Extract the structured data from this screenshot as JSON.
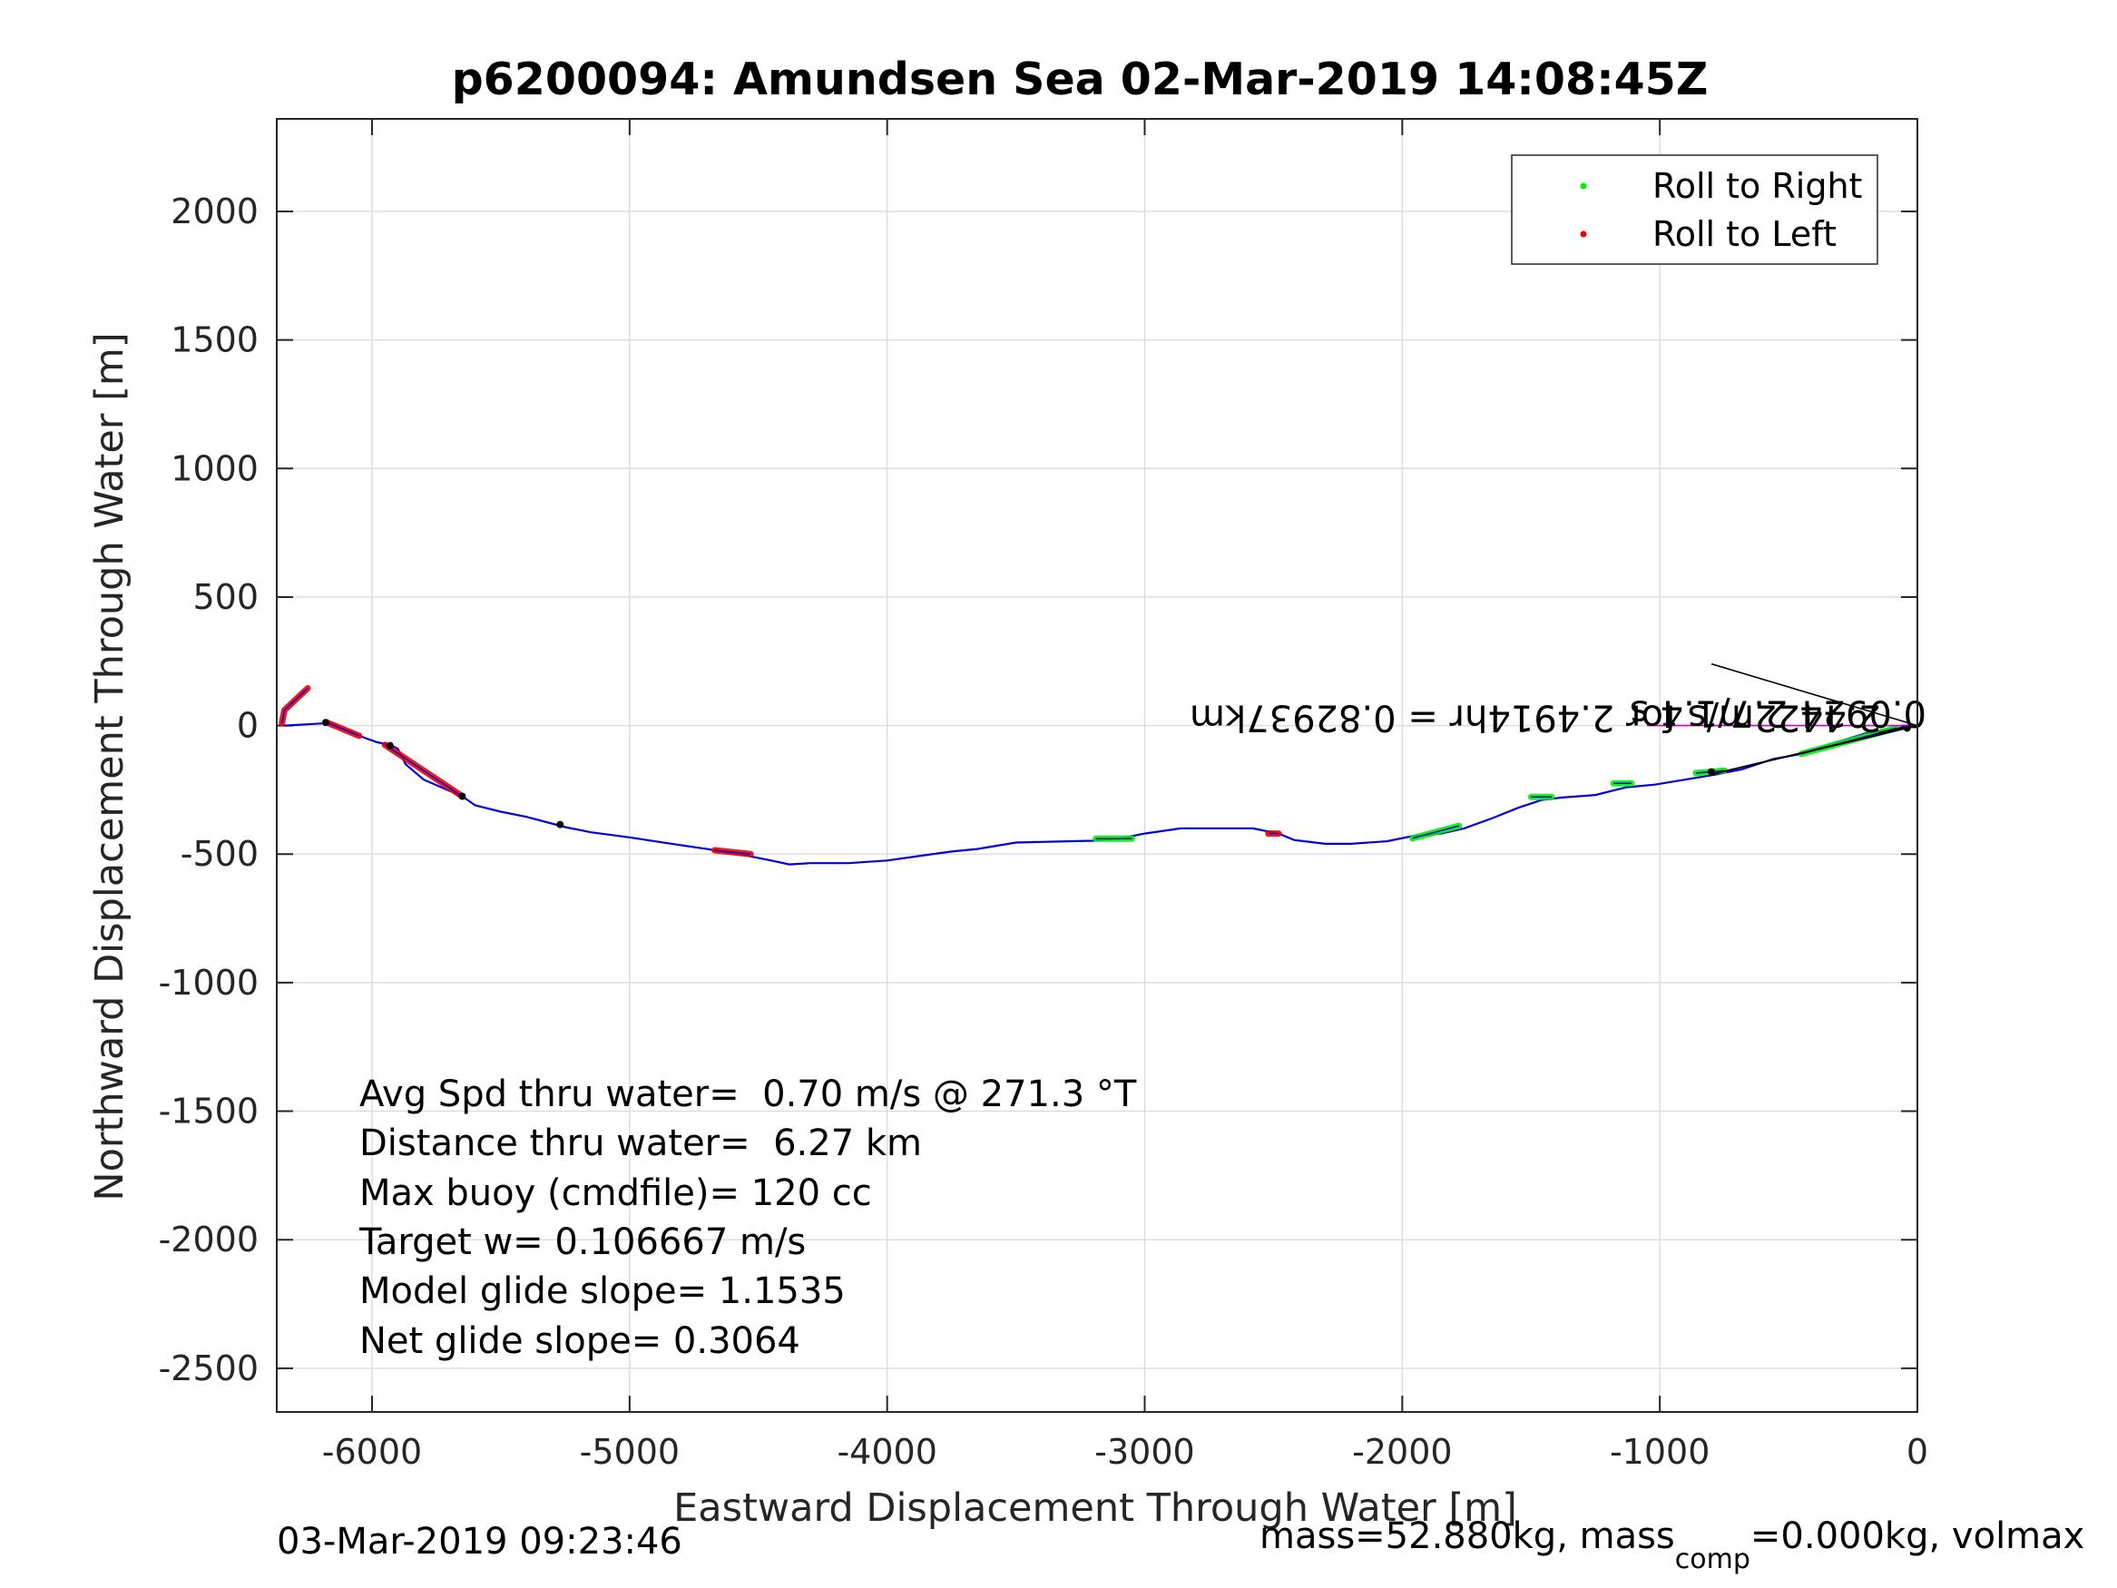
{
  "chart_data": {
    "type": "line",
    "title": "p6200094: Amundsen Sea 02-Mar-2019 14:08:45Z",
    "xlabel": "Eastward Displacement Through Water [m]",
    "ylabel": "Northward Displacement Through Water [m]",
    "xlim": [
      -6370,
      0
    ],
    "ylim": [
      -2670,
      2360
    ],
    "xticks": [
      -6000,
      -5000,
      -4000,
      -3000,
      -2000,
      -1000,
      0
    ],
    "yticks": [
      2000,
      1500,
      1000,
      500,
      0,
      -500,
      -1000,
      -1500,
      -2000,
      -2500
    ],
    "grid": true,
    "legend": {
      "placement": "top-right",
      "entries": [
        {
          "label": "Roll to Right",
          "color": "#00ee00"
        },
        {
          "label": "Roll to Left",
          "color": "#ee0000"
        }
      ]
    },
    "series": [
      {
        "color": "#0000dd",
        "x": [
          0,
          -80,
          -200,
          -330,
          -450,
          -560,
          -680,
          -780,
          -900,
          -1020,
          -1130,
          -1250,
          -1380,
          -1460,
          -1550,
          -1650,
          -1760,
          -1850,
          -1960,
          -2060,
          -2200,
          -2300,
          -2420,
          -2480,
          -2580,
          -2700,
          -2860,
          -3000,
          -3100,
          -3200,
          -3300,
          -3500,
          -3650,
          -3750,
          -3880,
          -4000,
          -4150,
          -4300,
          -4380,
          -4450,
          -4550,
          -4700,
          -4850,
          -5000,
          -5150,
          -5250,
          -5400,
          -5500,
          -5600,
          -5650,
          -5720,
          -5800,
          -5870,
          -5900,
          -5930,
          -5980,
          -6050,
          -6130,
          -6170,
          -6250,
          -6300,
          -6340
        ],
        "y": [
          0,
          -10,
          -30,
          -70,
          -110,
          -130,
          -170,
          -190,
          -210,
          -230,
          -240,
          -270,
          -280,
          -290,
          -320,
          -360,
          -400,
          -420,
          -430,
          -450,
          -460,
          -460,
          -445,
          -420,
          -400,
          -400,
          -400,
          -420,
          -440,
          -448,
          -450,
          -455,
          -480,
          -490,
          -508,
          -525,
          -535,
          -535,
          -540,
          -525,
          -505,
          -480,
          -458,
          -435,
          -415,
          -395,
          -355,
          -335,
          -310,
          -275,
          -245,
          -210,
          -150,
          -90,
          -75,
          -65,
          -40,
          -5,
          10,
          5,
          2,
          0
        ]
      }
    ],
    "roll_right_segments": [
      {
        "x": [
          -80,
          -450
        ],
        "y": [
          -10,
          -110
        ]
      },
      {
        "x": [
          -750,
          -860
        ],
        "y": [
          -175,
          -185
        ]
      },
      {
        "x": [
          -1110,
          -1180
        ],
        "y": [
          -225,
          -225
        ]
      },
      {
        "x": [
          -1420,
          -1500
        ],
        "y": [
          -278,
          -278
        ]
      },
      {
        "x": [
          -1780,
          -1960
        ],
        "y": [
          -390,
          -438
        ]
      },
      {
        "x": [
          -3050,
          -3190
        ],
        "y": [
          -440,
          -440
        ]
      }
    ],
    "roll_left_segments": [
      {
        "x": [
          -6250,
          -6340,
          -6350
        ],
        "y": [
          145,
          60,
          10
        ]
      },
      {
        "x": [
          -6050,
          -6170
        ],
        "y": [
          -40,
          10
        ]
      },
      {
        "x": [
          -5650,
          -5950
        ],
        "y": [
          -275,
          -75
        ]
      },
      {
        "x": [
          -4530,
          -4670
        ],
        "y": [
          -500,
          -485
        ]
      },
      {
        "x": [
          -2480,
          -2520
        ],
        "y": [
          -420,
          -420
        ]
      }
    ],
    "markers": [
      {
        "x": -6180,
        "y": 12
      },
      {
        "x": -5930,
        "y": -78
      },
      {
        "x": -5650,
        "y": -275
      },
      {
        "x": -5270,
        "y": -385
      },
      {
        "x": -800,
        "y": -180
      },
      {
        "x": -40,
        "y": -10
      }
    ],
    "annotations": {
      "rotated_label_1": "2.4422m/s for 2.4914hr = 0.82937km",
      "rotated_label_2": "0.0924 2.7/1.4 s",
      "current_arrow": {
        "x": [
          0,
          -800
        ],
        "y": [
          0,
          240
        ]
      }
    }
  },
  "stats": {
    "avg_speed": "Avg Spd thru water=  0.70 m/s @ 271.3 °T",
    "distance": "Distance thru water=  6.27 km",
    "max_buoy": "Max buoy (cmdfile)= 120 cc",
    "target_w": "Target w= 0.106667 m/s",
    "model_glide": "Model glide slope= 1.1535",
    "net_glide": "Net glide slope= 0.3064"
  },
  "footer": {
    "timestamp": "03-Mar-2019 09:23:46",
    "mass_prefix": "mass=52.880kg, mass",
    "mass_sub": "comp",
    "mass_suffix": "=0.000kg, volmax"
  }
}
